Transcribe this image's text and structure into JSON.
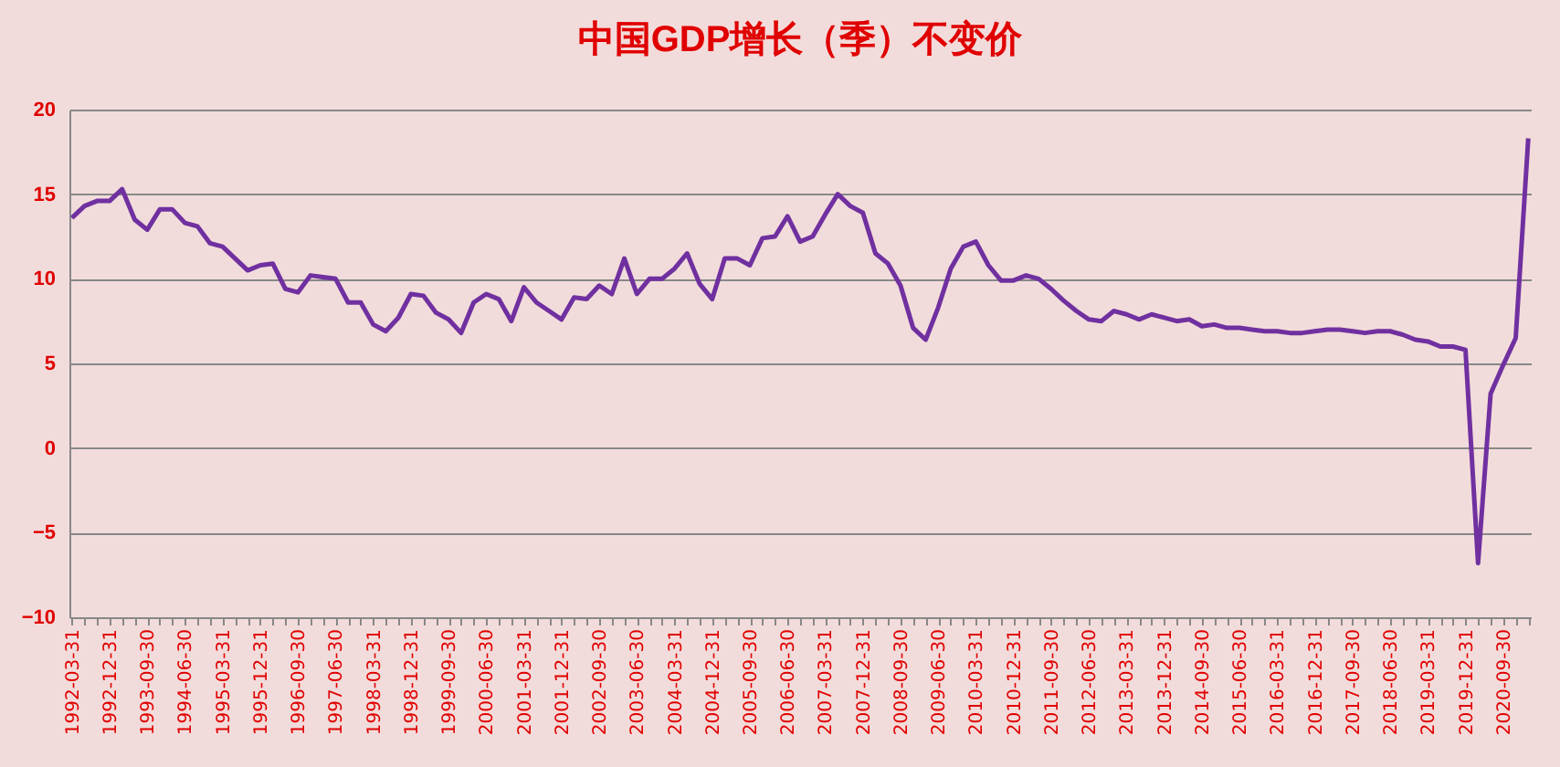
{
  "chart_data": {
    "type": "line",
    "title": "中国GDP增长（季）不变价",
    "categories": [
      "1992-03-31",
      null,
      null,
      "1992-12-31",
      null,
      null,
      "1993-09-30",
      null,
      null,
      "1994-06-30",
      null,
      null,
      "1995-03-31",
      null,
      null,
      "1995-12-31",
      null,
      null,
      "1996-09-30",
      null,
      null,
      "1997-06-30",
      null,
      null,
      "1998-03-31",
      null,
      null,
      "1998-12-31",
      null,
      null,
      "1999-09-30",
      null,
      null,
      "2000-06-30",
      null,
      null,
      "2001-03-31",
      null,
      null,
      "2001-12-31",
      null,
      null,
      "2002-09-30",
      null,
      null,
      "2003-06-30",
      null,
      null,
      "2004-03-31",
      null,
      null,
      "2004-12-31",
      null,
      null,
      "2005-09-30",
      null,
      null,
      "2006-06-30",
      null,
      null,
      "2007-03-31",
      null,
      null,
      "2007-12-31",
      null,
      null,
      "2008-09-30",
      null,
      null,
      "2009-06-30",
      null,
      null,
      "2010-03-31",
      null,
      null,
      "2010-12-31",
      null,
      null,
      "2011-09-30",
      null,
      null,
      "2012-06-30",
      null,
      null,
      "2013-03-31",
      null,
      null,
      "2013-12-31",
      null,
      null,
      "2014-09-30",
      null,
      null,
      "2015-06-30",
      null,
      null,
      "2016-03-31",
      null,
      null,
      "2016-12-31",
      null,
      null,
      "2017-09-30",
      null,
      null,
      "2018-06-30",
      null,
      null,
      "2019-03-31",
      null,
      null,
      "2019-12-31",
      null,
      null,
      "2020-09-30",
      null,
      null
    ],
    "series": [
      {
        "color": "#7030a0",
        "values": [
          13.6,
          14.3,
          14.6,
          14.6,
          15.3,
          13.5,
          12.9,
          14.1,
          14.1,
          13.3,
          13.1,
          12.1,
          11.9,
          11.2,
          10.5,
          10.8,
          10.9,
          9.4,
          9.2,
          10.2,
          10.1,
          10.0,
          8.6,
          8.6,
          7.3,
          6.9,
          7.7,
          9.1,
          9.0,
          8.0,
          7.6,
          6.8,
          8.6,
          9.1,
          8.8,
          7.5,
          9.5,
          8.6,
          8.1,
          7.6,
          8.9,
          8.8,
          9.6,
          9.1,
          11.2,
          9.1,
          10.0,
          10.0,
          10.6,
          11.5,
          9.7,
          8.8,
          11.2,
          11.2,
          10.8,
          12.4,
          12.5,
          13.7,
          12.2,
          12.5,
          13.8,
          15.0,
          14.3,
          13.9,
          11.5,
          10.9,
          9.6,
          7.1,
          6.4,
          8.3,
          10.6,
          11.9,
          12.2,
          10.8,
          9.9,
          9.9,
          10.2,
          10.0,
          9.4,
          8.7,
          8.1,
          7.6,
          7.5,
          8.1,
          7.9,
          7.6,
          7.9,
          7.7,
          7.5,
          7.6,
          7.2,
          7.3,
          7.1,
          7.1,
          7.0,
          6.9,
          6.9,
          6.8,
          6.8,
          6.9,
          7.0,
          7.0,
          6.9,
          6.8,
          6.9,
          6.9,
          6.7,
          6.4,
          6.3,
          6.0,
          6.0,
          5.8,
          -6.8,
          3.2,
          4.9,
          6.5,
          18.3
        ]
      }
    ],
    "ylim": [
      -10,
      20
    ],
    "yticks": [
      -10,
      -5,
      0,
      5,
      10,
      15,
      20
    ],
    "grid": "y",
    "marker": "none",
    "line_style": "solid"
  }
}
